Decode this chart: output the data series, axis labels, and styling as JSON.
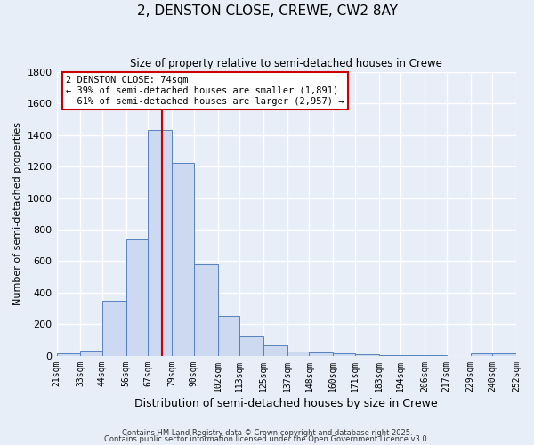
{
  "title": "2, DENSTON CLOSE, CREWE, CW2 8AY",
  "subtitle": "Size of property relative to semi-detached houses in Crewe",
  "xlabel": "Distribution of semi-detached houses by size in Crewe",
  "ylabel": "Number of semi-detached properties",
  "bin_edges": [
    21,
    33,
    44,
    56,
    67,
    79,
    90,
    102,
    113,
    125,
    137,
    148,
    160,
    171,
    183,
    194,
    206,
    217,
    229,
    240,
    252
  ],
  "bin_counts": [
    15,
    35,
    350,
    740,
    1430,
    1220,
    580,
    255,
    125,
    65,
    30,
    20,
    15,
    10,
    5,
    5,
    3,
    2,
    15,
    15
  ],
  "bar_facecolor": "#ccd9f0",
  "bar_edgecolor": "#5580c0",
  "property_size": 74,
  "property_label": "2 DENSTON CLOSE: 74sqm",
  "pct_smaller": 39,
  "pct_larger": 61,
  "count_smaller": 1891,
  "count_larger": 2957,
  "red_line_color": "#cc0000",
  "annotation_box_facecolor": "#ffffff",
  "annotation_box_edgecolor": "#cc0000",
  "ylim": [
    0,
    1800
  ],
  "background_color": "#e8eef8",
  "grid_color": "#ffffff",
  "footer_line1": "Contains HM Land Registry data © Crown copyright and database right 2025.",
  "footer_line2": "Contains public sector information licensed under the Open Government Licence v3.0."
}
